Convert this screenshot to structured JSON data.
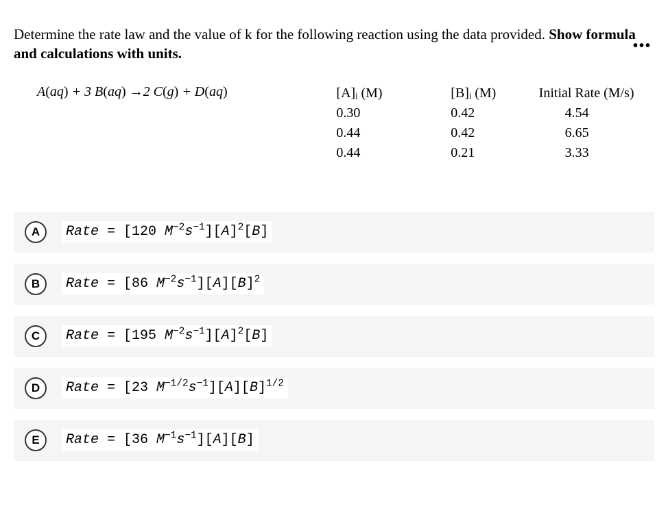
{
  "prompt": {
    "part1": "Determine the rate law and the value of k for the following reaction using the data provided. ",
    "bold": "Show formula and calculations with units."
  },
  "equation_html": "A<span class='upr'>(</span>aq<span class='upr'>)</span> + 3 B<span class='upr'>(</span>aq<span class='upr'>)</span>  →2 C<span class='upr'>(</span>g<span class='upr'>)</span> + D<span class='upr'>(</span>aq<span class='upr'>)</span>",
  "table": {
    "headers": {
      "a": "[A]ᵢ (M)",
      "b": "[B]ᵢ (M)",
      "rate": "Initial Rate (M/s)"
    },
    "rows": [
      {
        "a": "0.30",
        "b": "0.42",
        "rate": "4.54"
      },
      {
        "a": "0.44",
        "b": "0.42",
        "rate": "6.65"
      },
      {
        "a": "0.44",
        "b": "0.21",
        "rate": "3.33"
      }
    ]
  },
  "choices": [
    {
      "letter": "A",
      "html": "Rate <span class='rm'>= [120 </span>M<sup><span class='rm'>−2</span></sup>s<sup><span class='rm'>−1</span></sup><span class='rm'>][</span>A<span class='rm'>]</span><sup><span class='rm'>2</span></sup><span class='rm'>[</span>B<span class='rm'>]</span>"
    },
    {
      "letter": "B",
      "html": "Rate <span class='rm'>= [86 </span>M<sup><span class='rm'>−2</span></sup>s<sup><span class='rm'>−1</span></sup><span class='rm'>][</span>A<span class='rm'>][</span>B<span class='rm'>]</span><sup><span class='rm'>2</span></sup>"
    },
    {
      "letter": "C",
      "html": "Rate <span class='rm'>= [195 </span>M<sup><span class='rm'>−2</span></sup>s<sup><span class='rm'>−1</span></sup><span class='rm'>][</span>A<span class='rm'>]</span><sup><span class='rm'>2</span></sup><span class='rm'>[</span>B<span class='rm'>]</span>"
    },
    {
      "letter": "D",
      "html": "Rate <span class='rm'>= [23 </span>M<sup><span class='rm'>−1/2</span></sup>s<sup><span class='rm'>−1</span></sup><span class='rm'>][</span>A<span class='rm'>][</span>B<span class='rm'>]</span><sup><span class='rm'>1/2</span></sup>"
    },
    {
      "letter": "E",
      "html": "Rate <span class='rm'>= [36 </span>M<sup><span class='rm'>−1</span></sup>s<sup><span class='rm'>−1</span></sup><span class='rm'>][</span>A<span class='rm'>][</span>B<span class='rm'>]</span>"
    }
  ],
  "colors": {
    "choice_bg": "#f5f5f5",
    "page_bg": "#ffffff",
    "text": "#000000",
    "circle_border": "#333333"
  }
}
